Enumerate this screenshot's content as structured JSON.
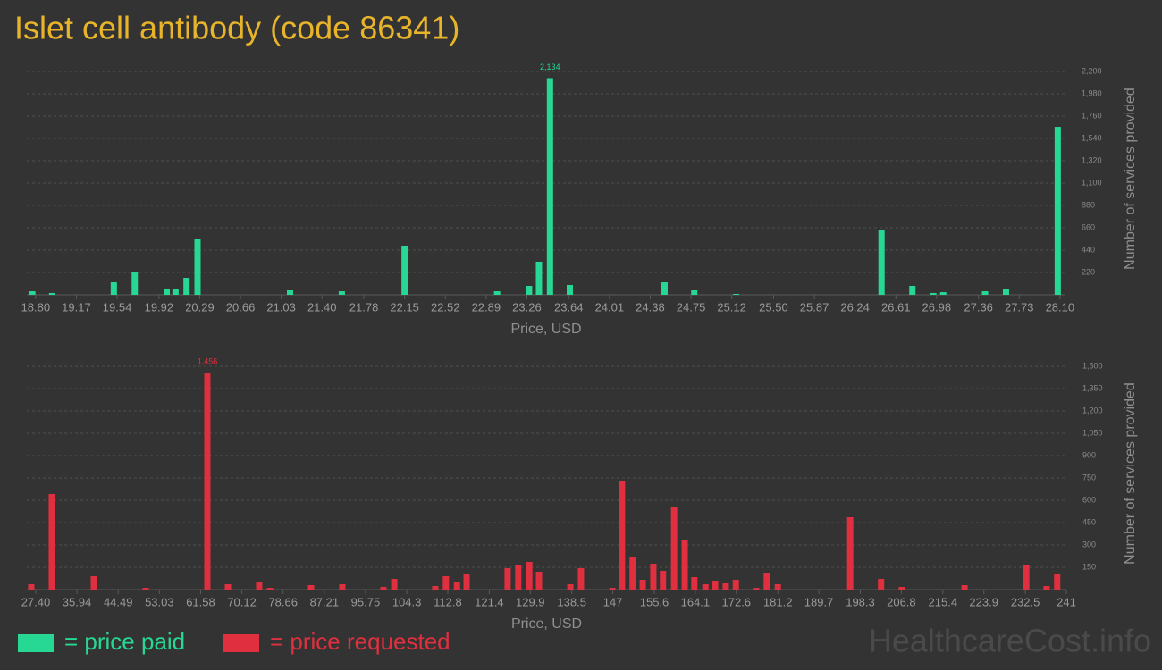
{
  "title": "Islet cell antibody (code 86341)",
  "watermark": "HealthcareCost.info",
  "chart_data": [
    {
      "type": "bar",
      "xlabel": "Price, USD",
      "ylabel": "Number of services provided",
      "grid": true,
      "xlim": [
        18.72,
        28.15
      ],
      "ylim": [
        0,
        2200
      ],
      "xticks": [
        {
          "value": 18.8,
          "label": "18.80"
        },
        19.17,
        19.54,
        19.92,
        20.29,
        20.66,
        21.03,
        {
          "value": 21.4,
          "label": "21.40"
        },
        21.78,
        22.15,
        22.52,
        22.89,
        23.26,
        23.64,
        24.01,
        24.38,
        24.75,
        25.12,
        {
          "value": 25.5,
          "label": "25.50"
        },
        25.87,
        26.24,
        26.61,
        26.98,
        27.36,
        27.73,
        {
          "value": 28.1,
          "label": "28.10"
        }
      ],
      "yticks": [
        220,
        440,
        660,
        880,
        {
          "value": 1100,
          "label": "1,100"
        },
        {
          "value": 1320,
          "label": "1,320"
        },
        {
          "value": 1540,
          "label": "1,540"
        },
        {
          "value": 1760,
          "label": "1,760"
        },
        {
          "value": 1980,
          "label": "1,980"
        },
        {
          "value": 2200,
          "label": "2,200"
        }
      ],
      "x": [
        18.77,
        18.95,
        19.51,
        19.7,
        19.99,
        20.07,
        20.17,
        20.27,
        21.11,
        21.58,
        22.15,
        22.99,
        23.28,
        23.37,
        23.47,
        23.65,
        24.51,
        24.78,
        25.16,
        26.48,
        26.76,
        26.95,
        27.04,
        27.42,
        27.61,
        28.08
      ],
      "series": [
        {
          "name": "= price paid",
          "color": "#27d894",
          "values": [
            35,
            18,
            123,
            220,
            62,
            53,
            167,
            554,
            44,
            35,
            484,
            35,
            88,
            326,
            2134,
            97,
            123,
            44,
            9,
            642,
            88,
            18,
            26,
            35,
            53,
            1654
          ],
          "value_labels": [
            null,
            null,
            null,
            null,
            null,
            null,
            null,
            null,
            null,
            null,
            null,
            null,
            null,
            null,
            "2,134",
            null,
            null,
            null,
            null,
            null,
            null,
            null,
            null,
            null,
            null,
            null
          ]
        }
      ]
    },
    {
      "type": "bar",
      "xlabel": "Price, USD",
      "ylabel": "Number of services provided",
      "grid": true,
      "xlim": [
        25.55,
        241
      ],
      "ylim": [
        0,
        1500
      ],
      "xticks": [
        {
          "value": 27.4,
          "label": "27.40"
        },
        35.94,
        44.49,
        53.03,
        61.58,
        70.12,
        78.66,
        87.21,
        95.75,
        104.3,
        112.8,
        121.4,
        129.9,
        138.5,
        147,
        155.6,
        164.1,
        172.6,
        181.2,
        189.7,
        198.3,
        206.8,
        215.4,
        223.9,
        232.5,
        241
      ],
      "yticks": [
        150,
        300,
        450,
        600,
        750,
        900,
        {
          "value": 1050,
          "label": "1,050"
        },
        {
          "value": 1200,
          "label": "1,200"
        },
        {
          "value": 1350,
          "label": "1,350"
        },
        {
          "value": 1500,
          "label": "1,500"
        }
      ],
      "x": [
        26.47,
        30.73,
        39.44,
        50.19,
        62.97,
        67.23,
        73.71,
        75.94,
        84.46,
        90.94,
        99.46,
        101.7,
        110.2,
        112.4,
        114.7,
        116.7,
        125.2,
        127.4,
        129.7,
        131.7,
        138.2,
        140.4,
        146.9,
        148.9,
        151.1,
        153.2,
        155.4,
        157.4,
        159.7,
        161.9,
        163.9,
        166.2,
        168.2,
        170.4,
        172.5,
        176.7,
        178.9,
        181.2,
        196.2,
        202.6,
        206.9,
        219.9,
        232.7,
        236.9,
        239.1
      ],
      "series": [
        {
          "name": "= price requested",
          "color": "#e0303f",
          "values": [
            36,
            642,
            90,
            12,
            1456,
            36,
            54,
            12,
            30,
            36,
            18,
            72,
            24,
            90,
            54,
            108,
            144,
            162,
            186,
            120,
            36,
            144,
            12,
            732,
            216,
            66,
            174,
            126,
            558,
            330,
            84,
            36,
            60,
            42,
            66,
            12,
            114,
            36,
            486,
            72,
            18,
            30,
            162,
            24,
            102
          ],
          "value_labels": [
            null,
            null,
            null,
            null,
            "1,456",
            null,
            null,
            null,
            null,
            null,
            null,
            null,
            null,
            null,
            null,
            null,
            null,
            null,
            null,
            null,
            null,
            null,
            null,
            null,
            null,
            null,
            null,
            null,
            null,
            null,
            null,
            null,
            null,
            null,
            null,
            null,
            null,
            null,
            null,
            null,
            null,
            null,
            null,
            null,
            null
          ]
        }
      ]
    }
  ]
}
